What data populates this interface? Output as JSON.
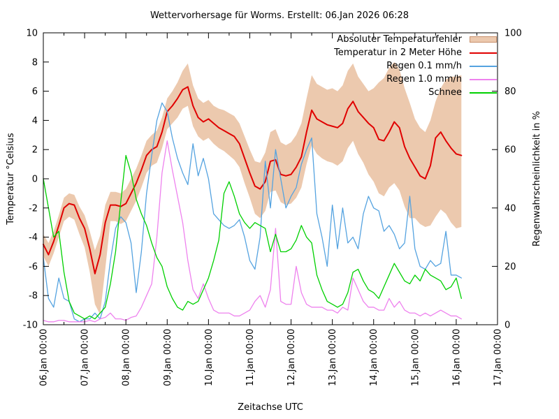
{
  "chart_data": {
    "type": "line",
    "title": "Wettervorhersage für Worms. Erstellt: 06.Jan 2026 06:28",
    "xlabel": "Zeitachse UTC",
    "x_start": "06.Jan 00:00",
    "x_end": "17.Jan 00:00",
    "x_total_hours": 264,
    "step_hours": 3,
    "grid": false,
    "legend_position": "top-right-inside",
    "x_tick_labels": [
      "06.Jan 00:00",
      "07.Jan 00:00",
      "08.Jan 00:00",
      "09.Jan 00:00",
      "10.Jan 00:00",
      "11.Jan 00:00",
      "12.Jan 00:00",
      "13.Jan 00:00",
      "14.Jan 00:00",
      "15.Jan 00:00",
      "16.Jan 00:00",
      "17.Jan 00:00"
    ],
    "y_left": {
      "label": "Temperatur °Celsius",
      "min": -10,
      "max": 10,
      "tick_step": 2,
      "tick_labels": [
        "10",
        "8",
        "6",
        "4",
        "2",
        "0",
        "-2",
        "-4",
        "-6",
        "-8",
        "-10"
      ]
    },
    "y_right": {
      "label": "Regenwahrscheinlichkeit in %",
      "min": 0,
      "max": 100,
      "tick_step": 20,
      "tick_labels": [
        "100",
        "80",
        "60",
        "40",
        "20",
        "0"
      ]
    },
    "series": [
      {
        "name": "Absoluter Temperaturfehler",
        "type": "band",
        "axis": "left",
        "color": "#ecc9ae",
        "upper": [
          -3.8,
          -4.4,
          -3.6,
          -2.5,
          -1.3,
          -1.0,
          -1.1,
          -1.9,
          -2.5,
          -3.6,
          -4.9,
          -3.9,
          -1.8,
          -0.9,
          -0.9,
          -1.0,
          -0.7,
          0.0,
          0.7,
          1.6,
          2.6,
          3.0,
          3.3,
          4.2,
          5.5,
          6.0,
          6.6,
          7.4,
          7.9,
          6.4,
          5.5,
          5.2,
          5.4,
          5.0,
          4.8,
          4.7,
          4.5,
          4.3,
          3.8,
          2.9,
          2.0,
          1.2,
          1.1,
          1.8,
          3.2,
          3.4,
          2.5,
          2.3,
          2.5,
          3.0,
          3.8,
          5.5,
          7.1,
          6.5,
          6.3,
          6.1,
          6.2,
          6.0,
          6.4,
          7.4,
          7.9,
          7.0,
          6.5,
          6.0,
          6.2,
          6.6,
          6.9,
          7.6,
          8.0,
          7.5,
          6.2,
          5.2,
          4.1,
          3.5,
          3.2,
          4.0,
          5.3,
          6.2,
          6.8,
          7.0,
          7.0,
          7.1
        ],
        "lower": [
          -5.3,
          -6.0,
          -5.1,
          -4.0,
          -2.9,
          -2.6,
          -2.8,
          -3.8,
          -4.7,
          -6.4,
          -8.6,
          -9.3,
          -6.2,
          -2.9,
          -2.9,
          -3.1,
          -2.9,
          -2.2,
          -1.5,
          -0.6,
          0.4,
          0.9,
          1.1,
          2.1,
          3.4,
          3.8,
          4.2,
          4.8,
          5.0,
          3.6,
          2.9,
          2.6,
          2.8,
          2.4,
          2.1,
          1.9,
          1.6,
          1.3,
          0.8,
          -0.3,
          -1.3,
          -2.4,
          -2.7,
          -2.2,
          -0.9,
          -0.8,
          -1.6,
          -1.8,
          -1.7,
          -1.3,
          -0.6,
          1.0,
          2.3,
          1.7,
          1.4,
          1.2,
          1.1,
          0.9,
          1.2,
          2.1,
          2.6,
          1.7,
          1.1,
          0.3,
          -0.2,
          -1.0,
          -1.2,
          -0.6,
          -0.3,
          -0.8,
          -1.9,
          -2.7,
          -2.7,
          -3.1,
          -3.3,
          -3.2,
          -2.6,
          -2.1,
          -2.4,
          -3.0,
          -3.4,
          -3.3
        ]
      },
      {
        "name": "Temperatur in 2 Meter Höhe",
        "type": "line",
        "axis": "left",
        "color": "#e00000",
        "width": 2,
        "values": [
          -4.5,
          -5.2,
          -4.3,
          -3.2,
          -2.0,
          -1.7,
          -1.8,
          -2.7,
          -3.4,
          -4.8,
          -6.5,
          -5.2,
          -3.0,
          -1.8,
          -1.8,
          -1.9,
          -1.7,
          -1.0,
          -0.3,
          0.6,
          1.6,
          2.0,
          2.2,
          3.2,
          4.6,
          5.0,
          5.5,
          6.1,
          6.3,
          5.0,
          4.2,
          3.9,
          4.1,
          3.8,
          3.5,
          3.3,
          3.1,
          2.9,
          2.4,
          1.4,
          0.4,
          -0.5,
          -0.7,
          -0.2,
          1.2,
          1.3,
          0.3,
          0.2,
          0.3,
          0.8,
          1.5,
          3.2,
          4.7,
          4.1,
          3.9,
          3.7,
          3.6,
          3.5,
          3.8,
          4.8,
          5.3,
          4.6,
          4.2,
          3.8,
          3.5,
          2.7,
          2.6,
          3.2,
          3.9,
          3.5,
          2.2,
          1.4,
          0.8,
          0.2,
          0.0,
          0.9,
          2.8,
          3.2,
          2.6,
          2.1,
          1.7,
          1.6
        ]
      },
      {
        "name": "Regen 0.1 mm/h",
        "type": "line",
        "axis": "right",
        "color": "#55a3e0",
        "width": 1.3,
        "values": [
          23,
          9,
          6,
          16,
          9,
          8,
          2,
          1,
          2,
          2,
          4,
          2,
          8,
          22,
          33,
          37,
          35,
          28,
          11,
          25,
          45,
          58,
          70,
          76,
          73,
          64,
          57,
          52,
          48,
          62,
          51,
          57,
          50,
          38,
          36,
          34,
          33,
          34,
          36,
          30,
          22,
          19,
          30,
          56,
          40,
          60,
          50,
          40,
          44,
          47,
          55,
          60,
          64,
          38,
          30,
          20,
          41,
          26,
          40,
          28,
          30,
          26,
          38,
          44,
          40,
          39,
          32,
          34,
          31,
          26,
          28,
          44,
          26,
          20,
          19,
          22,
          20,
          21,
          32,
          17,
          17,
          16
        ]
      },
      {
        "name": "Regen 1.0 mm/h",
        "type": "line",
        "axis": "right",
        "color": "#ee82ee",
        "width": 1.3,
        "values": [
          1.5,
          1,
          1,
          1.5,
          1.5,
          1,
          1,
          1,
          1,
          1.5,
          1,
          2,
          2.5,
          4,
          2,
          2,
          1.5,
          2.5,
          3,
          6,
          10,
          14,
          30,
          52,
          63,
          53,
          44,
          35,
          22,
          12,
          9,
          14,
          9,
          5,
          4,
          4,
          4,
          3,
          3,
          4,
          5,
          8,
          10,
          6,
          12,
          33,
          8,
          7,
          7,
          20,
          11,
          7,
          6,
          6,
          6,
          5,
          5,
          4,
          6,
          5,
          16,
          12,
          8,
          6,
          6,
          5,
          5,
          9,
          6,
          8,
          5,
          4,
          4,
          3,
          4,
          3,
          4,
          5,
          4,
          3,
          3,
          2
        ]
      },
      {
        "name": "Schnee",
        "type": "line",
        "axis": "right",
        "color": "#00d000",
        "width": 1.3,
        "values": [
          50,
          40,
          30,
          32,
          18,
          8,
          4,
          3,
          2,
          3,
          2,
          4,
          6,
          14,
          25,
          42,
          58,
          52,
          43,
          38,
          34,
          28,
          23,
          20,
          13,
          9,
          6,
          5,
          8,
          7,
          8,
          12,
          16,
          22,
          29,
          45,
          49,
          44,
          38,
          35,
          33,
          35,
          34,
          33,
          25,
          31,
          25,
          25,
          26,
          29,
          34,
          30,
          28,
          17,
          12,
          8,
          7,
          6,
          7,
          11,
          18,
          19,
          15,
          12,
          11,
          9,
          13,
          17,
          21,
          18,
          15,
          14,
          17,
          15,
          19,
          17,
          16,
          15,
          12,
          13,
          16,
          9
        ]
      }
    ]
  }
}
